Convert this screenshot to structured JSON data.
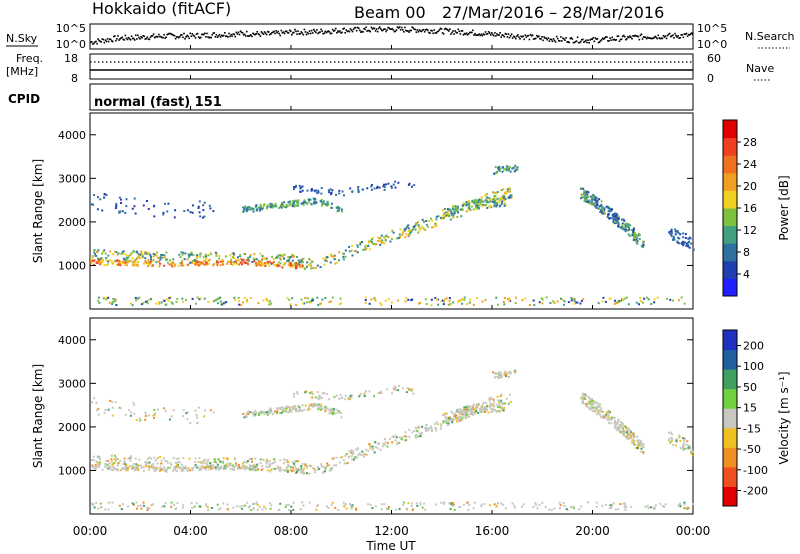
{
  "header": {
    "title": "Hokkaido (fitACF)",
    "beam": "Beam 00",
    "date_range": "27/Mar/2016 – 28/Mar/2016"
  },
  "sky_panel": {
    "left_label": "N.Sky",
    "right_label": "N.Search",
    "left_ticks": [
      "10^5",
      "10^0"
    ],
    "right_ticks": [
      "10^5",
      "10^0"
    ],
    "series": [
      {
        "x": 0,
        "y": 0.3
      },
      {
        "x": 1,
        "y": 0.45
      },
      {
        "x": 2,
        "y": 0.5
      },
      {
        "x": 3,
        "y": 0.55
      },
      {
        "x": 4,
        "y": 0.55
      },
      {
        "x": 5,
        "y": 0.6
      },
      {
        "x": 6,
        "y": 0.65
      },
      {
        "x": 7,
        "y": 0.62
      },
      {
        "x": 8,
        "y": 0.7
      },
      {
        "x": 9,
        "y": 0.72
      },
      {
        "x": 10,
        "y": 0.78
      },
      {
        "x": 11,
        "y": 0.8
      },
      {
        "x": 12,
        "y": 0.82
      },
      {
        "x": 13,
        "y": 0.8
      },
      {
        "x": 14,
        "y": 0.75
      },
      {
        "x": 15,
        "y": 0.7
      },
      {
        "x": 16,
        "y": 0.62
      },
      {
        "x": 17,
        "y": 0.55
      },
      {
        "x": 18,
        "y": 0.45
      },
      {
        "x": 19,
        "y": 0.4
      },
      {
        "x": 20,
        "y": 0.38
      },
      {
        "x": 21,
        "y": 0.45
      },
      {
        "x": 22,
        "y": 0.52
      },
      {
        "x": 23,
        "y": 0.55
      },
      {
        "x": 24,
        "y": 0.58
      }
    ]
  },
  "freq_panel": {
    "left_label_1": "Freq.",
    "left_label_2": "[MHz]",
    "right_label": "Nave",
    "left_ticks": [
      "18",
      "8"
    ],
    "right_ticks": [
      "60",
      "0"
    ]
  },
  "cpid": {
    "label": "CPID",
    "value": "normal (fast) 151"
  },
  "chart_data": [
    {
      "type": "heatmap",
      "title": "",
      "ylabel": "Slant Range [km]",
      "xlabel": "Time UT",
      "xlim": [
        "00:00",
        "00:00"
      ],
      "ylim": [
        0,
        4500
      ],
      "y_ticks": [
        "1000",
        "2000",
        "3000",
        "4000"
      ],
      "colorbar": {
        "label": "Power [dB]",
        "ticks": [
          "4",
          "8",
          "12",
          "16",
          "20",
          "24",
          "28"
        ],
        "colors": [
          "#2020ff",
          "#2040b0",
          "#3070a0",
          "#40a080",
          "#80c040",
          "#f0d020",
          "#f0a020",
          "#f07020",
          "#f04020",
          "#e00000"
        ]
      }
    },
    {
      "type": "heatmap",
      "title": "",
      "ylabel": "Slant Range [km]",
      "xlabel": "Time UT",
      "xlim": [
        "00:00",
        "00:00"
      ],
      "ylim": [
        0,
        4500
      ],
      "y_ticks": [
        "1000",
        "2000",
        "3000",
        "4000"
      ],
      "colorbar": {
        "label": "Velocity [m s⁻¹]",
        "ticks": [
          "200",
          "100",
          "50",
          "15",
          "-15",
          "-50",
          "-100",
          "-200"
        ],
        "colors": [
          "#2030c0",
          "#2060a0",
          "#40a060",
          "#70d040",
          "#c8c8c0",
          "#f0c020",
          "#f09020",
          "#f05020",
          "#e00000"
        ]
      }
    }
  ],
  "x_ticks": [
    "00:00",
    "04:00",
    "08:00",
    "12:00",
    "16:00",
    "20:00",
    "00:00"
  ],
  "x_label": "Time UT",
  "colors": {
    "axis": "#000000",
    "background": "#ffffff"
  }
}
